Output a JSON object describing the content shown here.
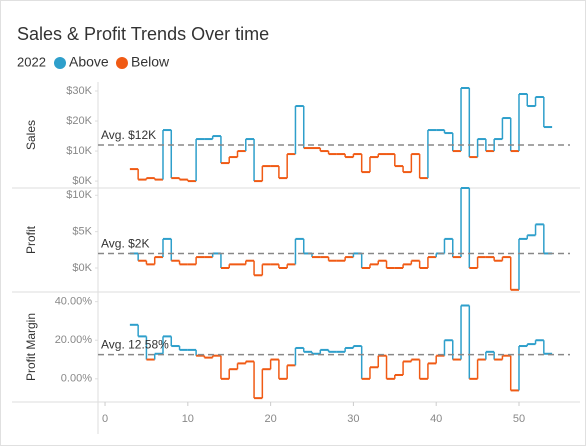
{
  "title": "Sales & Profit Trends Over time",
  "legend": {
    "title": "2022",
    "items": [
      {
        "name": "Above",
        "color": "#2e9fcb"
      },
      {
        "name": "Below",
        "color": "#f05a14"
      }
    ]
  },
  "chart_data": [
    {
      "type": "line",
      "y_label": "Sales",
      "avg": 12000,
      "avg_label": "Avg. $12K",
      "x": [
        3,
        4,
        5,
        6,
        7,
        8,
        9,
        10,
        11,
        12,
        13,
        14,
        15,
        16,
        17,
        18,
        19,
        20,
        21,
        22,
        23,
        24,
        25,
        26,
        27,
        28,
        29,
        30,
        31,
        32,
        33,
        34,
        35,
        36,
        37,
        38,
        39,
        40,
        41,
        42,
        43,
        44,
        45,
        46,
        47,
        48,
        49,
        50,
        51,
        52,
        53
      ],
      "values": [
        4000,
        500,
        1000,
        500,
        17000,
        1000,
        500,
        0,
        14000,
        14000,
        15000,
        6000,
        8000,
        10000,
        14000,
        0,
        5000,
        5000,
        1000,
        9000,
        25000,
        11000,
        11000,
        10000,
        9000,
        9000,
        8000,
        9000,
        3000,
        8000,
        9000,
        9000,
        5000,
        3000,
        9000,
        1000,
        17000,
        17000,
        16000,
        10000,
        31000,
        8000,
        14000,
        10000,
        14000,
        21000,
        10000,
        29000,
        25000,
        28000,
        18000
      ],
      "xlim": [
        -0.85,
        54.35
      ],
      "ylim": [
        -2300,
        33000
      ],
      "yticks": [
        {
          "value": 0,
          "label": "$0K"
        },
        {
          "value": 10000,
          "label": "$10K"
        },
        {
          "value": 20000,
          "label": "$20K"
        },
        {
          "value": 30000,
          "label": "$30K"
        }
      ]
    },
    {
      "type": "line",
      "y_label": "Profit",
      "avg": 2000,
      "avg_label": "Avg. $2K",
      "x": [
        3,
        4,
        5,
        6,
        7,
        8,
        9,
        10,
        11,
        12,
        13,
        14,
        15,
        16,
        17,
        18,
        19,
        20,
        21,
        22,
        23,
        24,
        25,
        26,
        27,
        28,
        29,
        30,
        31,
        32,
        33,
        34,
        35,
        36,
        37,
        38,
        39,
        40,
        41,
        42,
        43,
        44,
        45,
        46,
        47,
        48,
        49,
        50,
        51,
        52,
        53
      ],
      "values": [
        2000,
        1000,
        500,
        1500,
        4000,
        1000,
        500,
        500,
        1500,
        1500,
        2000,
        0,
        500,
        500,
        1000,
        -1000,
        500,
        500,
        0,
        500,
        4000,
        2000,
        1500,
        1500,
        1000,
        1000,
        1500,
        2000,
        0,
        500,
        1000,
        0,
        0,
        500,
        1000,
        0,
        1500,
        2000,
        4000,
        1500,
        11000,
        0,
        1500,
        1500,
        1000,
        1500,
        -3000,
        4000,
        4500,
        6000,
        2000
      ],
      "xlim": [
        -0.85,
        54.35
      ],
      "ylim": [
        -3300,
        11000
      ],
      "yticks": [
        {
          "value": 0,
          "label": "$0K"
        },
        {
          "value": 5000,
          "label": "$5K"
        },
        {
          "value": 10000,
          "label": "$10K"
        }
      ]
    },
    {
      "type": "line",
      "y_label": "Profit Margin",
      "avg": 12.58,
      "avg_label": "Avg. 12.58%",
      "x": [
        3,
        4,
        5,
        6,
        7,
        8,
        9,
        10,
        11,
        12,
        13,
        14,
        15,
        16,
        17,
        18,
        19,
        20,
        21,
        22,
        23,
        24,
        25,
        26,
        27,
        28,
        29,
        30,
        31,
        32,
        33,
        34,
        35,
        36,
        37,
        38,
        39,
        40,
        41,
        42,
        43,
        44,
        45,
        46,
        47,
        48,
        49,
        50,
        51,
        52,
        53
      ],
      "values": [
        28,
        22,
        10,
        13,
        22,
        17,
        15,
        15,
        12,
        11,
        12,
        0,
        5,
        8,
        9,
        -10,
        5,
        10,
        0,
        7,
        16,
        14,
        13,
        15,
        14,
        14,
        16,
        17,
        0,
        6,
        12,
        0,
        2,
        9,
        10,
        0,
        8,
        12,
        20,
        10,
        38,
        0,
        10,
        14,
        10,
        12,
        -6,
        17,
        18,
        20,
        13
      ],
      "xlim": [
        -0.85,
        54.35
      ],
      "ylim": [
        -12,
        45
      ],
      "yticks": [
        {
          "value": 0,
          "label": "0.00%"
        },
        {
          "value": 20,
          "label": "20.00%"
        },
        {
          "value": 40,
          "label": "40.00%"
        }
      ],
      "xticks": [
        0,
        10,
        20,
        30,
        40,
        50
      ]
    }
  ]
}
